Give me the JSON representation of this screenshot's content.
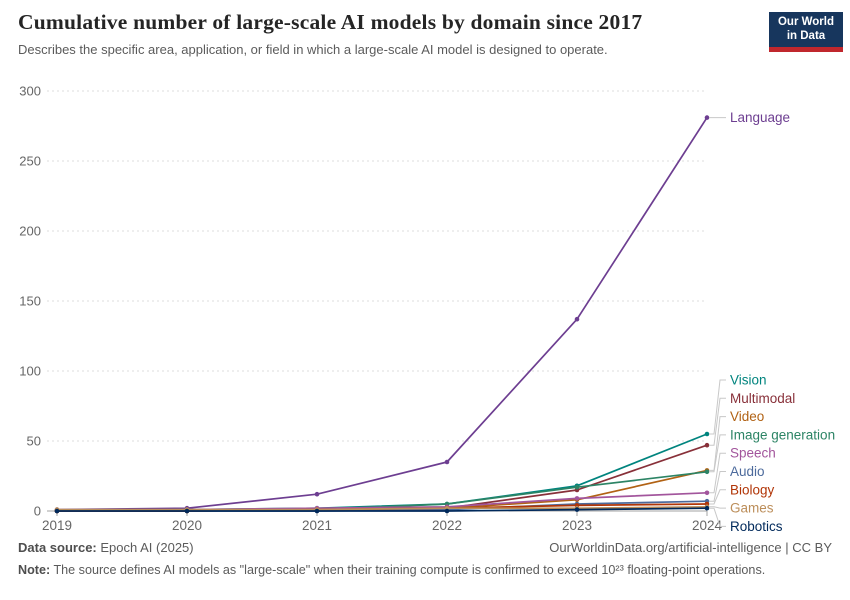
{
  "header": {
    "title": "Cumulative number of large-scale AI models by domain since 2017",
    "subtitle": "Describes the specific area, application, or field in which a large-scale AI model is designed to operate.",
    "logo_line1": "Our World",
    "logo_line2": "in Data"
  },
  "chart_data": {
    "type": "line",
    "title": "Cumulative number of large-scale AI models by domain since 2017",
    "x": [
      2019,
      2020,
      2021,
      2022,
      2023,
      2024
    ],
    "x_tick_labels": [
      "2019",
      "2020",
      "2021",
      "2022",
      "2023",
      "2024"
    ],
    "ylim": [
      0,
      300
    ],
    "yticks": [
      0,
      50,
      100,
      150,
      200,
      250,
      300
    ],
    "grid": "horizontal-dashed",
    "legend_position": "right-callouts",
    "series": [
      {
        "name": "Language",
        "color": "#6D3E91",
        "values": [
          1,
          2,
          12,
          35,
          137,
          281
        ]
      },
      {
        "name": "Vision",
        "color": "#00847E",
        "values": [
          0,
          1,
          2,
          5,
          18,
          55
        ]
      },
      {
        "name": "Multimodal",
        "color": "#883039",
        "values": [
          0,
          0,
          1,
          2,
          15,
          47
        ]
      },
      {
        "name": "Video",
        "color": "#B16214",
        "values": [
          0,
          0,
          1,
          2,
          8,
          29
        ]
      },
      {
        "name": "Image generation",
        "color": "#2C8465",
        "values": [
          0,
          0,
          1,
          5,
          17,
          28
        ]
      },
      {
        "name": "Speech",
        "color": "#A2559C",
        "values": [
          0,
          1,
          2,
          3,
          9,
          13
        ]
      },
      {
        "name": "Audio",
        "color": "#4C6A9C",
        "values": [
          0,
          0,
          0,
          1,
          5,
          7
        ]
      },
      {
        "name": "Biology",
        "color": "#B13507",
        "values": [
          0,
          0,
          1,
          2,
          4,
          5
        ]
      },
      {
        "name": "Games",
        "color": "#BC8E5A",
        "values": [
          1,
          1,
          1,
          2,
          2,
          3
        ]
      },
      {
        "name": "Robotics",
        "color": "#00295B",
        "values": [
          0,
          0,
          0,
          0,
          1,
          2
        ]
      }
    ]
  },
  "footer": {
    "source_label": "Data source:",
    "source_value": "Epoch AI (2025)",
    "attribution": "OurWorldinData.org/artificial-intelligence | CC BY",
    "note_label": "Note:",
    "note_value": "The source defines AI models as \"large-scale\" when their training compute is confirmed to exceed 10²³ floating-point operations."
  }
}
